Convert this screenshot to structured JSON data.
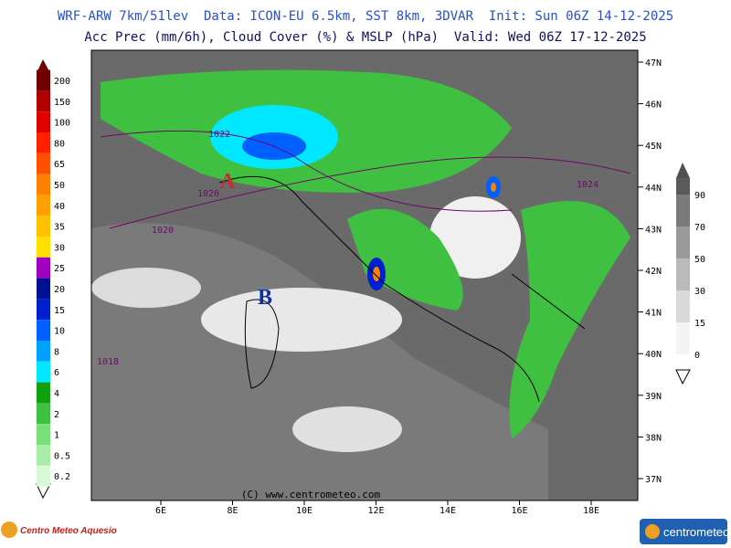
{
  "header": {
    "line1": "WRF-ARW 7km/51lev  Data: ICON-EU 6.5km, SST 8km, 3DVAR  Init: Sun 06Z 14-12-2025",
    "line2": "Acc Prec (mm/6h), Cloud Cover (%) & MSLP (hPa)  Valid: Wed 06Z 17-12-2025"
  },
  "precip_scale": {
    "labels": [
      "200",
      "150",
      "100",
      "80",
      "65",
      "50",
      "40",
      "35",
      "30",
      "25",
      "20",
      "15",
      "10",
      "8",
      "6",
      "4",
      "2",
      "1",
      "0.5",
      "0.2"
    ]
  },
  "cloud_scale": {
    "labels": [
      "90",
      "70",
      "50",
      "30",
      "15",
      "0"
    ]
  },
  "map": {
    "lat_labels": [
      "47N",
      "46N",
      "45N",
      "44N",
      "43N",
      "42N",
      "41N",
      "40N",
      "39N",
      "38N",
      "37N"
    ],
    "lon_labels": [
      "6E",
      "8E",
      "10E",
      "12E",
      "14E",
      "16E",
      "18E"
    ],
    "isobar_labels": [
      "1022",
      "1020",
      "1020",
      "1024",
      "1018"
    ],
    "pressure_centers": [
      "A",
      "B"
    ],
    "copyright": "(C) www.centrometeo.com"
  },
  "logos": {
    "left": "Centro Meteo Aquesio",
    "right": "centrometeo"
  }
}
